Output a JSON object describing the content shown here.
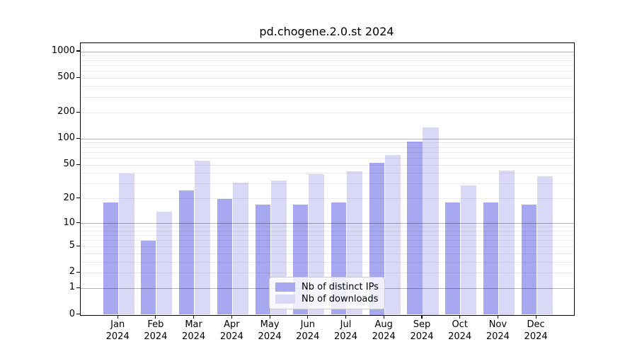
{
  "title": "pd.chogene.2.0.st 2024",
  "chart_data": {
    "type": "bar",
    "title": "pd.chogene.2.0.st 2024",
    "x_categories": [
      "Jan",
      "Feb",
      "Mar",
      "Apr",
      "May",
      "Jun",
      "Jul",
      "Aug",
      "Sep",
      "Oct",
      "Nov",
      "Dec"
    ],
    "x_year_label": "2024",
    "series": [
      {
        "name": "Nb of distinct IPs",
        "color": "#a8a8f0",
        "values": [
          18,
          6,
          25,
          20,
          17,
          17,
          18,
          53,
          94,
          18,
          18,
          17
        ]
      },
      {
        "name": "Nb of downloads",
        "color": "#d9d9f7",
        "values": [
          40,
          14,
          56,
          31,
          33,
          39,
          42,
          65,
          137,
          29,
          43,
          37
        ]
      }
    ],
    "yscale": "log1p",
    "ylim": [
      0,
      1250
    ],
    "y_ticks": [
      0,
      1,
      2,
      5,
      10,
      20,
      50,
      100,
      200,
      500,
      1000
    ],
    "y_major_gridlines": [
      1,
      10,
      100,
      1000
    ],
    "y_minor_gridlines": [
      2,
      3,
      4,
      5,
      6,
      7,
      8,
      9,
      20,
      30,
      40,
      50,
      60,
      70,
      80,
      90,
      200,
      300,
      400,
      500,
      600,
      700,
      800,
      900
    ],
    "grid": true,
    "legend_position": "lower center"
  },
  "legend": {
    "items": [
      {
        "label": "Nb of distinct IPs",
        "swatch": "#a8a8f0"
      },
      {
        "label": "Nb of downloads",
        "swatch": "#d9d9f7"
      }
    ]
  },
  "colors": {
    "bar_distinct_ips": "#a8a8f0",
    "bar_downloads": "#d9d9f7",
    "grid_major": "rgba(0,0,0,0.30)",
    "grid_minor": "rgba(0,0,0,0.08)",
    "spine": "#000000",
    "background": "#ffffff"
  }
}
